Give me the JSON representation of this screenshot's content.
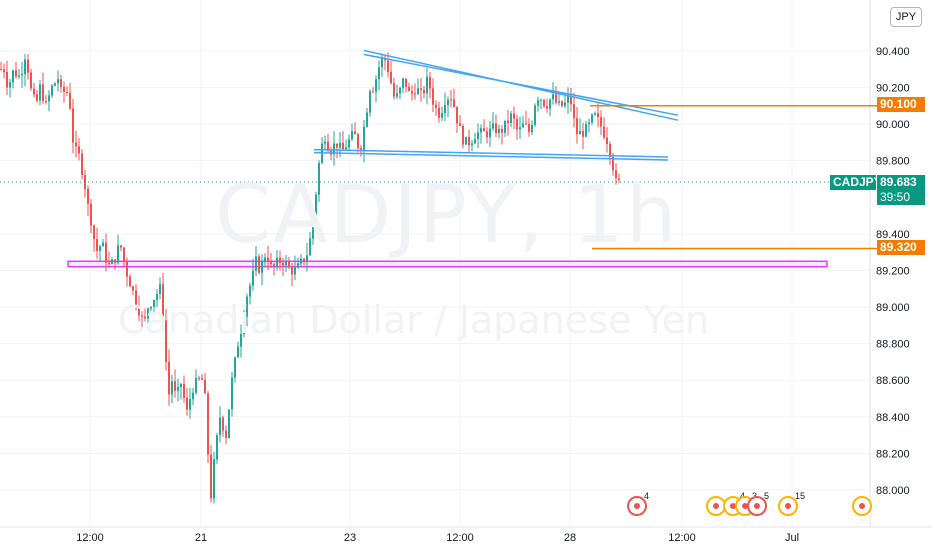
{
  "watermark": {
    "symbol": "CADJPY, 1h",
    "description": "Canadian Dollar / Japanese Yen"
  },
  "currency_badge": "JPY",
  "price_axis": {
    "ticks": [
      "90.400",
      "90.200",
      "90.000",
      "89.800",
      "89.400",
      "89.200",
      "89.000",
      "88.800",
      "88.600",
      "88.400",
      "88.200",
      "88.000"
    ]
  },
  "time_axis": {
    "ticks": [
      "12:00",
      "21",
      "23",
      "12:00",
      "28",
      "12:00",
      "Jul"
    ]
  },
  "last_price": {
    "symbol": "CADJPY",
    "price": "89.683",
    "countdown": "39:50"
  },
  "levels": {
    "upper": "90.100",
    "lower": "89.320"
  },
  "events": [
    {
      "kind": "red",
      "count": "4"
    },
    {
      "kind": "yellow",
      "count": ""
    },
    {
      "kind": "yellow",
      "count": "4"
    },
    {
      "kind": "yellow",
      "count": "3"
    },
    {
      "kind": "red",
      "count": "5"
    },
    {
      "kind": "yellow",
      "count": "15"
    },
    {
      "kind": "yellow",
      "count": ""
    }
  ],
  "colors": {
    "up": "#26a69a",
    "down": "#ef5350",
    "level": "#f57c00",
    "trendline": "#42a5f5",
    "support_box": "#e040fb",
    "last_price": "#089981"
  },
  "chart_data": {
    "type": "candlestick",
    "timeframe": "1h",
    "ylim": [
      87.92,
      90.55
    ],
    "key_prices": [
      {
        "label": "rectangle top",
        "y": 89.25
      },
      {
        "label": "rectangle bottom",
        "y": 89.22
      },
      {
        "label": "open high",
        "y": 90.45
      },
      {
        "label": "rally low",
        "y": 87.96
      },
      {
        "label": "wedge high",
        "y": 90.42
      },
      {
        "label": "last",
        "y": 89.683
      }
    ],
    "trendlines": [
      {
        "name": "upper",
        "from": 90.38,
        "to": 90.07
      },
      {
        "name": "lower",
        "from": 89.86,
        "to": 89.82
      }
    ],
    "price_path": [
      [
        0,
        90.3
      ],
      [
        6,
        90.3
      ],
      [
        10,
        90.2
      ],
      [
        16,
        90.3
      ],
      [
        20,
        90.25
      ],
      [
        24,
        90.3
      ],
      [
        28,
        90.4
      ],
      [
        32,
        90.2
      ],
      [
        38,
        90.1
      ],
      [
        42,
        90.2
      ],
      [
        48,
        90.1
      ],
      [
        54,
        90.2
      ],
      [
        60,
        90.25
      ],
      [
        64,
        90.15
      ],
      [
        68,
        90.2
      ],
      [
        72,
        90.1
      ],
      [
        76,
        89.85
      ],
      [
        80,
        89.85
      ],
      [
        86,
        89.7
      ],
      [
        90,
        89.55
      ],
      [
        94,
        89.45
      ],
      [
        98,
        89.3
      ],
      [
        104,
        89.35
      ],
      [
        110,
        89.22
      ],
      [
        116,
        89.25
      ],
      [
        122,
        89.35
      ],
      [
        128,
        89.2
      ],
      [
        134,
        89.1
      ],
      [
        140,
        89.0
      ],
      [
        146,
        88.9
      ],
      [
        150,
        89.0
      ],
      [
        156,
        89.05
      ],
      [
        162,
        89.1
      ],
      [
        166,
        88.9
      ],
      [
        170,
        88.5
      ],
      [
        174,
        88.6
      ],
      [
        178,
        88.5
      ],
      [
        184,
        88.6
      ],
      [
        188,
        88.4
      ],
      [
        194,
        88.55
      ],
      [
        200,
        88.6
      ],
      [
        206,
        88.6
      ],
      [
        210,
        88.2
      ],
      [
        213,
        87.97
      ],
      [
        217,
        88.2
      ],
      [
        222,
        88.4
      ],
      [
        228,
        88.3
      ],
      [
        234,
        88.6
      ],
      [
        240,
        88.8
      ],
      [
        244,
        88.9
      ],
      [
        248,
        89.05
      ],
      [
        254,
        89.15
      ],
      [
        258,
        89.25
      ],
      [
        262,
        89.2
      ],
      [
        268,
        89.3
      ],
      [
        274,
        89.2
      ],
      [
        280,
        89.25
      ],
      [
        286,
        89.25
      ],
      [
        292,
        89.2
      ],
      [
        298,
        89.2
      ],
      [
        304,
        89.25
      ],
      [
        310,
        89.3
      ],
      [
        316,
        89.5
      ],
      [
        320,
        89.75
      ],
      [
        326,
        89.95
      ],
      [
        332,
        89.85
      ],
      [
        338,
        89.9
      ],
      [
        344,
        89.85
      ],
      [
        350,
        89.9
      ],
      [
        356,
        89.95
      ],
      [
        362,
        89.85
      ],
      [
        368,
        90.05
      ],
      [
        372,
        90.2
      ],
      [
        376,
        90.2
      ],
      [
        380,
        90.3
      ],
      [
        384,
        90.35
      ],
      [
        388,
        90.35
      ],
      [
        392,
        90.25
      ],
      [
        396,
        90.15
      ],
      [
        400,
        90.15
      ],
      [
        406,
        90.25
      ],
      [
        412,
        90.15
      ],
      [
        418,
        90.2
      ],
      [
        424,
        90.15
      ],
      [
        430,
        90.25
      ],
      [
        436,
        90.1
      ],
      [
        442,
        90.05
      ],
      [
        448,
        90.15
      ],
      [
        454,
        90.15
      ],
      [
        460,
        90.0
      ],
      [
        466,
        89.9
      ],
      [
        472,
        89.9
      ],
      [
        478,
        89.95
      ],
      [
        484,
        89.95
      ],
      [
        490,
        89.95
      ],
      [
        496,
        89.98
      ],
      [
        502,
        89.95
      ],
      [
        508,
        90.0
      ],
      [
        514,
        90.05
      ],
      [
        520,
        89.95
      ],
      [
        526,
        90.0
      ],
      [
        532,
        89.95
      ],
      [
        538,
        90.15
      ],
      [
        542,
        90.15
      ],
      [
        548,
        90.1
      ],
      [
        554,
        90.15
      ],
      [
        560,
        90.1
      ],
      [
        566,
        90.1
      ],
      [
        572,
        90.15
      ],
      [
        578,
        89.95
      ],
      [
        584,
        89.95
      ],
      [
        590,
        89.98
      ],
      [
        596,
        90.05
      ],
      [
        602,
        90.0
      ],
      [
        606,
        89.95
      ],
      [
        610,
        89.9
      ],
      [
        614,
        89.8
      ],
      [
        618,
        89.68
      ]
    ]
  }
}
